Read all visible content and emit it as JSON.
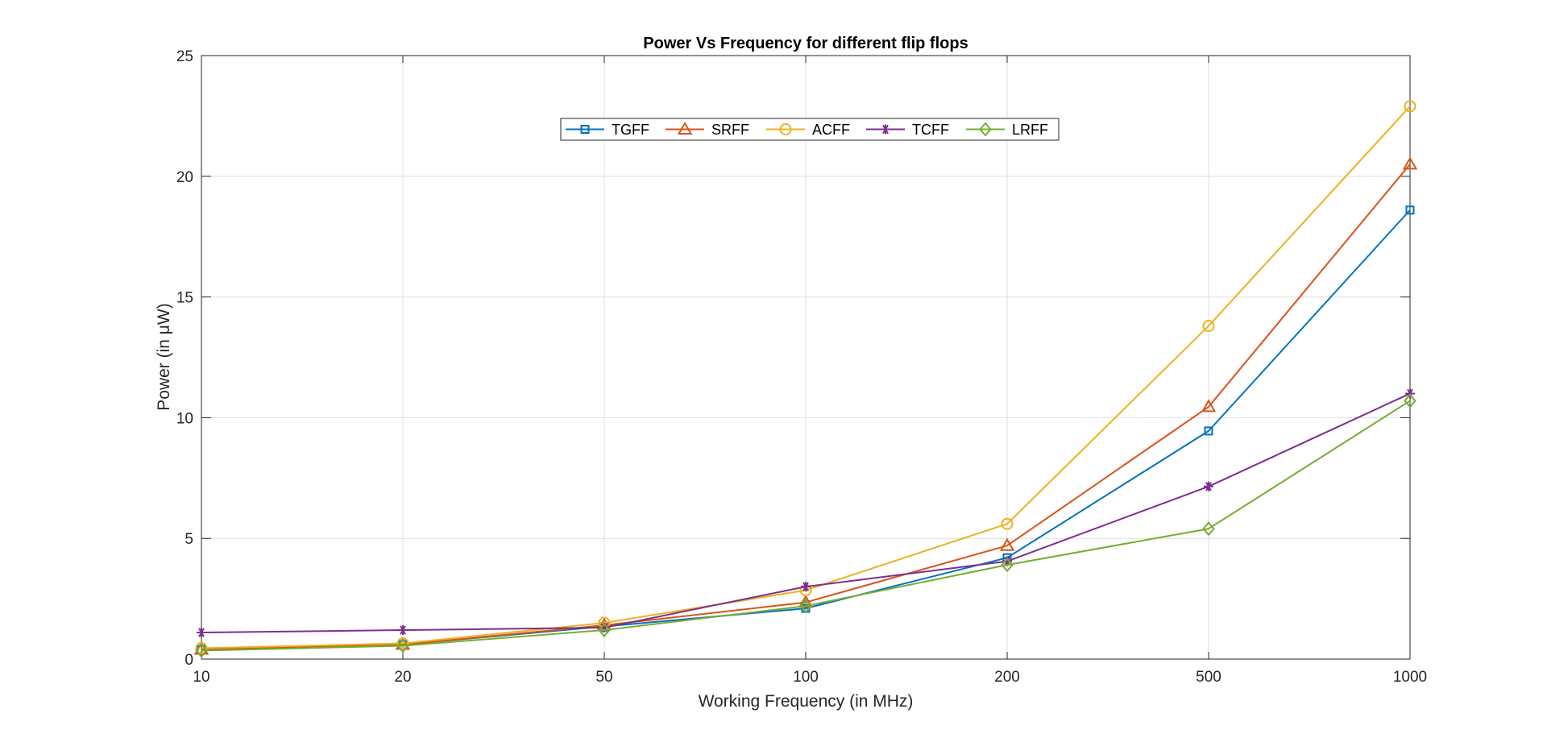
{
  "chart_data": {
    "type": "line",
    "title": "Power Vs Frequency for different flip flops",
    "xlabel": "Working Frequency (in MHz)",
    "ylabel": "Power (in μW)",
    "x": [
      "10",
      "20",
      "50",
      "100",
      "200",
      "500",
      "1000"
    ],
    "ylim": [
      0,
      25
    ],
    "yticks": [
      "0",
      "5",
      "10",
      "15",
      "20",
      "25"
    ],
    "grid": true,
    "legend_position": "top-center",
    "series": [
      {
        "name": "TGFF",
        "color": "#0072BD",
        "marker": "square",
        "values": [
          0.4,
          0.6,
          1.35,
          2.1,
          4.2,
          9.45,
          18.6
        ]
      },
      {
        "name": "SRFF",
        "color": "#D95319",
        "marker": "triangle",
        "values": [
          0.4,
          0.6,
          1.4,
          2.35,
          4.7,
          10.45,
          20.5
        ]
      },
      {
        "name": "ACFF",
        "color": "#EDB120",
        "marker": "circle",
        "values": [
          0.45,
          0.65,
          1.5,
          2.85,
          5.6,
          13.8,
          22.9
        ]
      },
      {
        "name": "TCFF",
        "color": "#7E2F8E",
        "marker": "asterisk",
        "values": [
          1.1,
          1.2,
          1.3,
          3.0,
          4.05,
          7.15,
          11.0
        ]
      },
      {
        "name": "LRFF",
        "color": "#77AC30",
        "marker": "diamond",
        "values": [
          0.35,
          0.55,
          1.2,
          2.2,
          3.9,
          5.4,
          10.7
        ]
      }
    ]
  }
}
